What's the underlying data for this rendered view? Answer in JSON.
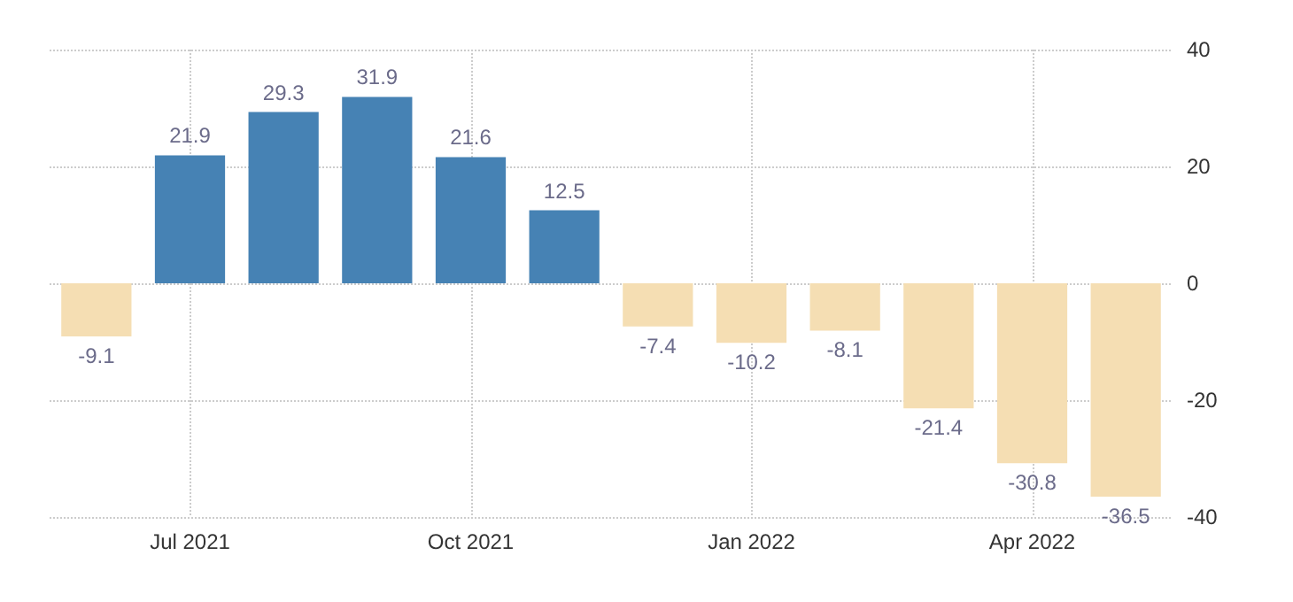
{
  "chart_data": {
    "type": "bar",
    "categories": [
      null,
      "Jul 2021",
      null,
      null,
      "Oct 2021",
      null,
      null,
      "Jan 2022",
      null,
      null,
      "Apr 2022",
      null
    ],
    "values": [
      -9.1,
      21.9,
      29.3,
      31.9,
      21.6,
      12.5,
      -7.4,
      -10.2,
      -8.1,
      -21.4,
      -30.8,
      -36.5
    ],
    "colors": [
      "#f5deb3",
      "#4682b4",
      "#4682b4",
      "#4682b4",
      "#4682b4",
      "#4682b4",
      "#f5deb3",
      "#f5deb3",
      "#f5deb3",
      "#f5deb3",
      "#f5deb3",
      "#f5deb3"
    ],
    "ylim": [
      -40,
      40
    ],
    "yticks": [
      -40,
      -20,
      0,
      20,
      40
    ],
    "grid": true,
    "data_labels": true
  }
}
